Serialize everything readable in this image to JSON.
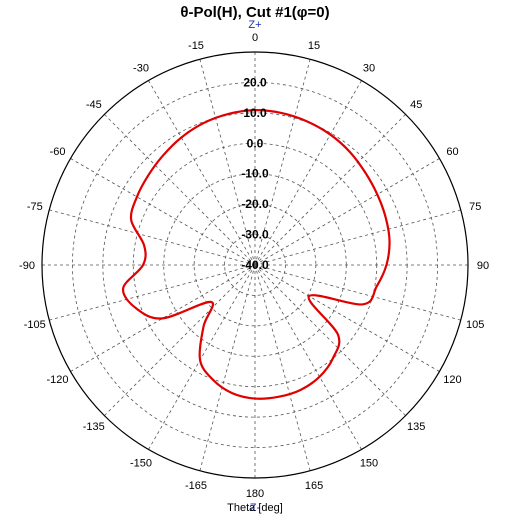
{
  "chart_data": {
    "type": "polar-line",
    "title": "θ-Pol(H), Cut #1(φ=0)",
    "xlabel": "Theta [deg]",
    "top_label": "Z+",
    "bottom_label": "Z-",
    "angle_ticks": [
      {
        "deg": 0,
        "label": "0"
      },
      {
        "deg": 15,
        "label": "15"
      },
      {
        "deg": 30,
        "label": "30"
      },
      {
        "deg": 45,
        "label": "45"
      },
      {
        "deg": 60,
        "label": "60"
      },
      {
        "deg": 75,
        "label": "75"
      },
      {
        "deg": 90,
        "label": "90"
      },
      {
        "deg": 105,
        "label": "105"
      },
      {
        "deg": 120,
        "label": "120"
      },
      {
        "deg": 135,
        "label": "135"
      },
      {
        "deg": 150,
        "label": "150"
      },
      {
        "deg": 165,
        "label": "165"
      },
      {
        "deg": 180,
        "label": "180"
      },
      {
        "deg": -165,
        "label": "-165"
      },
      {
        "deg": -150,
        "label": "-150"
      },
      {
        "deg": -135,
        "label": "-135"
      },
      {
        "deg": -120,
        "label": "-120"
      },
      {
        "deg": -105,
        "label": "-105"
      },
      {
        "deg": -90,
        "label": "-90"
      },
      {
        "deg": -75,
        "label": "-75"
      },
      {
        "deg": -60,
        "label": "-60"
      },
      {
        "deg": -45,
        "label": "-45"
      },
      {
        "deg": -30,
        "label": "-30"
      },
      {
        "deg": -15,
        "label": "-15"
      }
    ],
    "radial_ticks": [
      {
        "value": 20,
        "label": "20.0"
      },
      {
        "value": 10,
        "label": "10.0"
      },
      {
        "value": 0,
        "label": "0.0"
      },
      {
        "value": -10,
        "label": "-10.0"
      },
      {
        "value": -20,
        "label": "-20.0"
      },
      {
        "value": -30,
        "label": "-30.0"
      },
      {
        "value": -40,
        "label": "-40.0"
      }
    ],
    "r_range": [
      -40,
      30
    ],
    "grid": true,
    "series": [
      {
        "color": "#e00000",
        "theta": [
          0,
          10,
          20,
          30,
          40,
          50,
          60,
          70,
          80,
          90,
          100,
          110,
          120,
          130,
          140,
          150,
          160,
          170,
          180,
          -170,
          -160,
          -150,
          -140,
          -130,
          -120,
          -110,
          -100,
          -90,
          -80,
          -70,
          -60,
          -50,
          -40,
          -30,
          -20,
          -10
        ],
        "r": [
          10.9,
          10.7,
          10.2,
          9.5,
          8.5,
          7.3,
          6.4,
          5.7,
          4.9,
          3.2,
          0.6,
          -2.2,
          -19.5,
          -4.4,
          -0.1,
          2.4,
          3.7,
          4.0,
          3.9,
          2.8,
          0.2,
          -3.9,
          -13.7,
          -21.1,
          -4.9,
          1.6,
          4.0,
          -3.2,
          -3.0,
          3.3,
          4.8,
          5.8,
          7.0,
          8.4,
          9.6,
          10.4
        ]
      }
    ]
  }
}
